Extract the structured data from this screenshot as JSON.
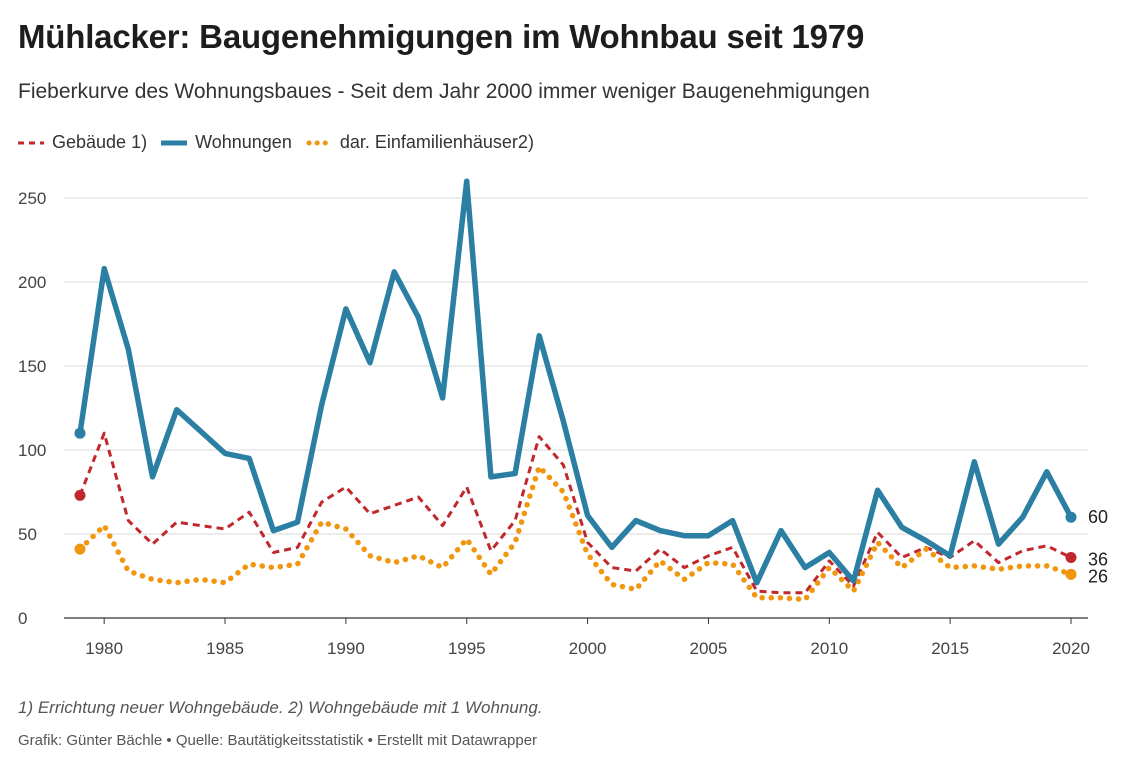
{
  "header": {
    "title": "Mühlacker: Baugenehmigungen im Wohnbau seit 1979",
    "subtitle": "Fieberkurve des Wohnungsbaues - Seit dem Jahr 2000 immer weniger Baugenehmigungen"
  },
  "legend": {
    "items": [
      {
        "label": "Gebäude 1)",
        "color": "#c0282d",
        "style": "dashed"
      },
      {
        "label": "Wohnungen",
        "color": "#2a7fa3",
        "style": "solid"
      },
      {
        "label": "dar. Einfamilienhäuser2)",
        "color": "#f0960f",
        "style": "dotted"
      }
    ]
  },
  "footer": {
    "footnote": "1) Errichtung neuer Wohngebäude. 2) Wohngebäude mit 1 Wohnung.",
    "credit": "Grafik: Günter Bächle • Quelle: Bautätigkeitsstatistik • Erstellt mit Datawrapper"
  },
  "chart_data": {
    "type": "line",
    "title": "Mühlacker: Baugenehmigungen im Wohnbau seit 1979",
    "xlabel": "",
    "ylabel": "",
    "xlim": [
      1979,
      2020
    ],
    "ylim": [
      0,
      260
    ],
    "yticks": [
      0,
      50,
      100,
      150,
      200,
      250
    ],
    "xticks": [
      1980,
      1985,
      1990,
      1995,
      2000,
      2005,
      2010,
      2015,
      2020
    ],
    "grid": "horizontal",
    "legend_position": "top-left",
    "x": [
      1979,
      1980,
      1981,
      1982,
      1983,
      1984,
      1985,
      1986,
      1987,
      1988,
      1989,
      1990,
      1991,
      1992,
      1993,
      1994,
      1995,
      1996,
      1997,
      1998,
      1999,
      2000,
      2001,
      2002,
      2003,
      2004,
      2005,
      2006,
      2007,
      2008,
      2009,
      2010,
      2011,
      2012,
      2013,
      2014,
      2015,
      2016,
      2017,
      2018,
      2019,
      2020
    ],
    "series": [
      {
        "name": "Gebäude 1)",
        "color": "#c0282d",
        "style": "dashed",
        "values": [
          73,
          110,
          58,
          44,
          57,
          55,
          53,
          63,
          39,
          42,
          69,
          78,
          62,
          67,
          72,
          55,
          78,
          40,
          58,
          108,
          91,
          45,
          30,
          28,
          41,
          30,
          37,
          42,
          16,
          15,
          15,
          34,
          19,
          51,
          36,
          42,
          36,
          46,
          33,
          40,
          43,
          36
        ]
      },
      {
        "name": "Wohnungen",
        "color": "#2a7fa3",
        "style": "solid",
        "values": [
          110,
          208,
          160,
          84,
          124,
          111,
          98,
          95,
          52,
          57,
          127,
          184,
          152,
          206,
          179,
          131,
          260,
          84,
          86,
          168,
          117,
          61,
          42,
          58,
          52,
          49,
          49,
          58,
          21,
          52,
          30,
          39,
          22,
          76,
          54,
          46,
          37,
          93,
          44,
          60,
          87,
          60
        ]
      },
      {
        "name": "dar. Einfamilienhäuser2)",
        "color": "#f0960f",
        "style": "dotted",
        "values": [
          41,
          55,
          28,
          23,
          21,
          23,
          21,
          32,
          30,
          32,
          57,
          53,
          37,
          33,
          37,
          30,
          47,
          26,
          45,
          90,
          75,
          38,
          20,
          17,
          34,
          23,
          33,
          32,
          12,
          12,
          11,
          30,
          16,
          45,
          30,
          41,
          30,
          31,
          29,
          31,
          31,
          26
        ]
      }
    ],
    "end_labels": [
      "60",
      "36",
      "26"
    ]
  }
}
